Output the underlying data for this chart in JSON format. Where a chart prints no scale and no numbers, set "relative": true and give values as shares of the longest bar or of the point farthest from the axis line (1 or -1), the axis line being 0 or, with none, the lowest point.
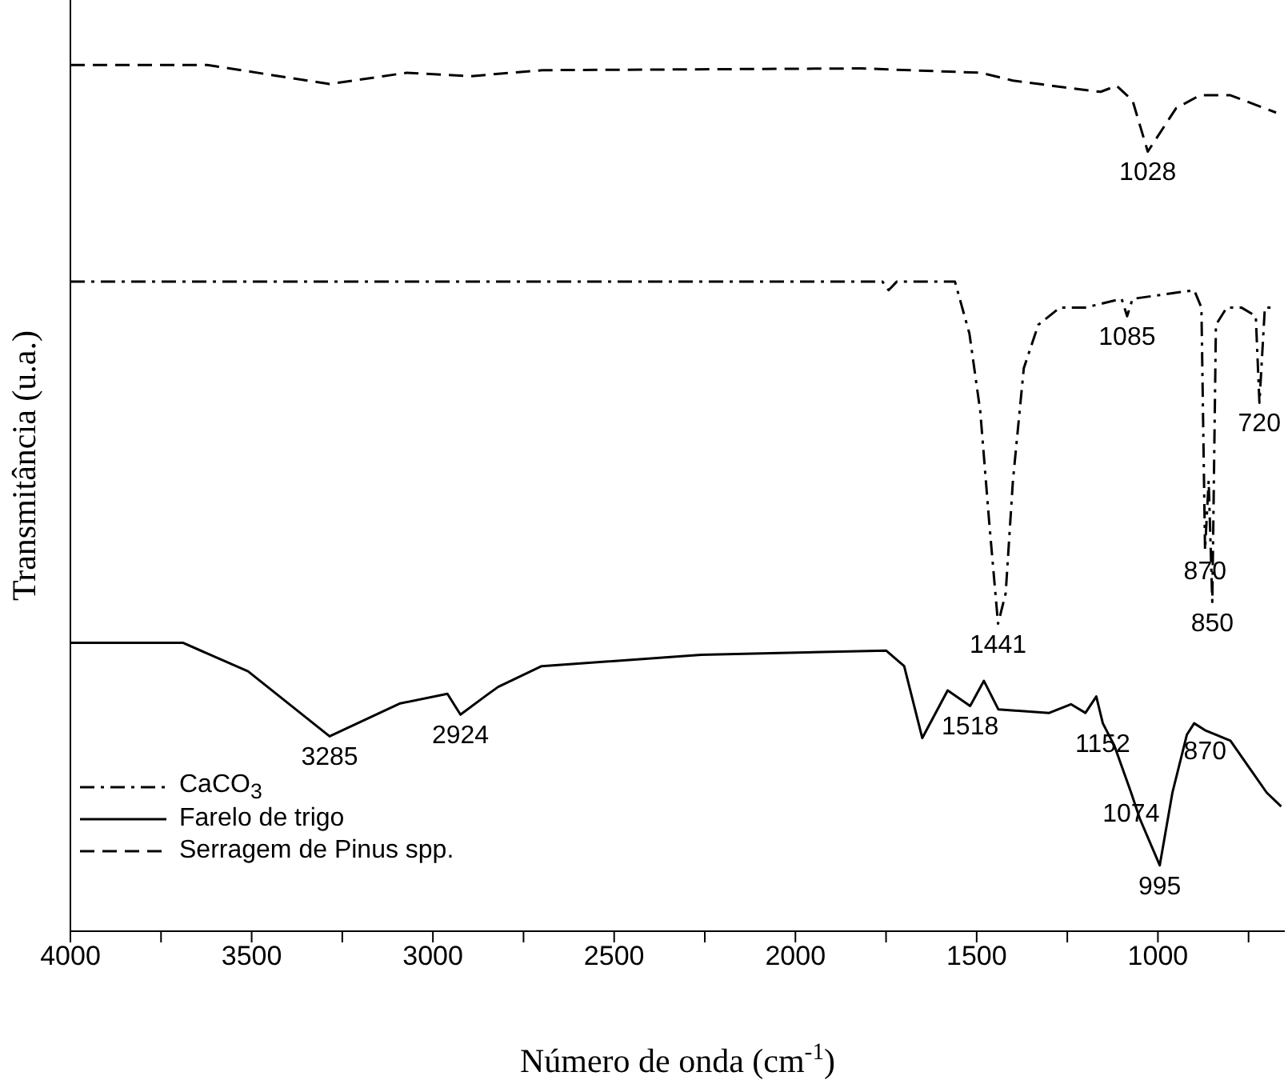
{
  "chart_data": {
    "type": "line",
    "relative": true,
    "xlabel": "Número de onda (cm$^{-1}$)",
    "ylabel": "Transmitância (u.a.)",
    "xlim": [
      4000,
      650
    ],
    "xticks": [
      4000,
      {
        "value": 3750,
        "label": null
      },
      3500,
      {
        "value": 3250,
        "label": null
      },
      3000,
      {
        "value": 2750,
        "label": null
      },
      2500,
      {
        "value": 2250,
        "label": null
      },
      2000,
      {
        "value": 1750,
        "label": null
      },
      1500,
      {
        "value": 1250,
        "label": null
      },
      1000,
      {
        "value": 750,
        "label": null
      }
    ],
    "legend": "bottom left",
    "grid": false,
    "marker": "none",
    "series": [
      {
        "name": "CaCO$_{3}$",
        "color": "#000000",
        "line_style": "dashdot",
        "x": [
          4000,
          3000,
          2000,
          1760,
          1743,
          1720,
          1600,
          1560,
          1520,
          1490,
          1465,
          1441,
          1420,
          1400,
          1370,
          1330,
          1270,
          1200,
          1100,
          1085,
          1070,
          900,
          880,
          870,
          860,
          850,
          840,
          810,
          770,
          730,
          720,
          705,
          680
        ],
        "values": [
          0.75,
          0.75,
          0.75,
          0.75,
          0.74,
          0.75,
          0.75,
          0.75,
          0.69,
          0.6,
          0.47,
          0.355,
          0.39,
          0.52,
          0.65,
          0.7,
          0.72,
          0.72,
          0.73,
          0.71,
          0.73,
          0.74,
          0.72,
          0.44,
          0.52,
          0.38,
          0.7,
          0.72,
          0.72,
          0.71,
          0.61,
          0.72,
          0.72
        ]
      },
      {
        "name": "Farelo de trigo",
        "color": "#000000",
        "line_style": "solid",
        "x": [
          4000,
          3690,
          3510,
          3285,
          3090,
          2960,
          2924,
          2850,
          2820,
          2700,
          2260,
          1750,
          1700,
          1650,
          1580,
          1518,
          1480,
          1440,
          1300,
          1240,
          1200,
          1170,
          1152,
          1120,
          1074,
          1050,
          995,
          960,
          920,
          900,
          870,
          800,
          750,
          700,
          660
        ],
        "values": [
          0.333,
          0.333,
          0.3,
          0.225,
          0.263,
          0.274,
          0.25,
          0.273,
          0.282,
          0.306,
          0.319,
          0.324,
          0.306,
          0.223,
          0.278,
          0.26,
          0.289,
          0.256,
          0.252,
          0.262,
          0.252,
          0.271,
          0.24,
          0.214,
          0.16,
          0.13,
          0.076,
          0.16,
          0.227,
          0.24,
          0.232,
          0.22,
          0.19,
          0.16,
          0.144
        ]
      },
      {
        "name": "Serragem de Pinus spp.",
        "color": "#000000",
        "line_style": "dashed",
        "x": [
          4000,
          3622,
          3285,
          3072,
          2896,
          2698,
          1818,
          1488,
          1400,
          1237,
          1158,
          1114,
          1070,
          1028,
          950,
          884,
          800,
          674
        ],
        "values": [
          1.0,
          1.0,
          0.978,
          0.991,
          0.987,
          0.994,
          0.996,
          0.991,
          0.982,
          0.973,
          0.969,
          0.976,
          0.959,
          0.9,
          0.95,
          0.965,
          0.965,
          0.945
        ]
      }
    ],
    "annotations": [
      {
        "text": "1028",
        "x": 1028,
        "y": 0.9
      },
      {
        "text": "1441",
        "x": 1441,
        "y": 0.355
      },
      {
        "text": "1085",
        "x": 1085,
        "y": 0.71
      },
      {
        "text": "870",
        "x": 870,
        "y": 0.44
      },
      {
        "text": "850",
        "x": 850,
        "y": 0.38
      },
      {
        "text": "720",
        "x": 720,
        "y": 0.61
      },
      {
        "text": "3285",
        "x": 3285,
        "y": 0.225
      },
      {
        "text": "2924",
        "x": 2924,
        "y": 0.25
      },
      {
        "text": "1518",
        "x": 1518,
        "y": 0.26
      },
      {
        "text": "1152",
        "x": 1152,
        "y": 0.24
      },
      {
        "text": "1074",
        "x": 1074,
        "y": 0.16
      },
      {
        "text": "995",
        "x": 995,
        "y": 0.076
      },
      {
        "text": "870",
        "x": 870,
        "y": 0.232
      }
    ]
  }
}
